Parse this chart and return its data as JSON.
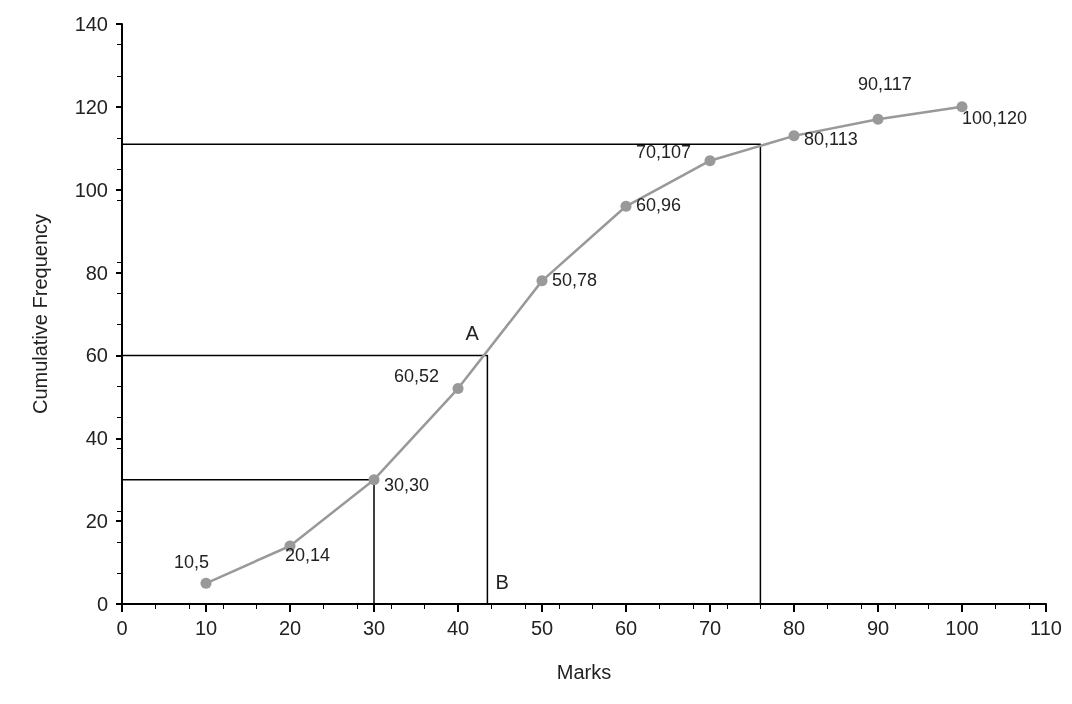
{
  "chart_data": {
    "type": "line",
    "xlabel": "Marks",
    "ylabel": "Cumulative Frequency",
    "x": [
      10,
      20,
      30,
      40,
      50,
      60,
      70,
      80,
      90,
      100
    ],
    "series": [
      {
        "color": "#999999",
        "values": [
          5,
          14,
          30,
          52,
          78,
          96,
          107,
          113,
          117,
          120
        ],
        "marker": "circle"
      },
      {
        "type": "line",
        "color": "#000000",
        "x": [
          0,
          30,
          30
        ],
        "values": [
          30,
          30,
          0
        ],
        "marker": "none"
      },
      {
        "type": "line",
        "color": "#000000",
        "x": [
          0,
          43.5,
          43.5
        ],
        "values": [
          60,
          60,
          0
        ],
        "marker": "none"
      },
      {
        "type": "line",
        "color": "#000000",
        "x": [
          0,
          76,
          76
        ],
        "values": [
          111,
          111,
          0
        ],
        "marker": "none"
      }
    ],
    "annotations": [
      {
        "text": "A",
        "x": 43.5,
        "y": 60
      },
      {
        "text": "B",
        "x": 43.5,
        "y": 0
      },
      {
        "text": "10,5",
        "x": 10,
        "y": 5
      },
      {
        "text": "20,14",
        "x": 20,
        "y": 14
      },
      {
        "text": "30,30",
        "x": 30,
        "y": 30
      },
      {
        "text": "60,52",
        "x": 40,
        "y": 52
      },
      {
        "text": "50,78",
        "x": 50,
        "y": 78
      },
      {
        "text": "60,96",
        "x": 60,
        "y": 96
      },
      {
        "text": "70,107",
        "x": 70,
        "y": 107
      },
      {
        "text": "80,113",
        "x": 80,
        "y": 113
      },
      {
        "text": "90,117",
        "x": 90,
        "y": 117
      },
      {
        "text": "100,120",
        "x": 100,
        "y": 120
      }
    ],
    "xlim": [
      0,
      110
    ],
    "xticks": [
      0,
      10,
      20,
      30,
      40,
      50,
      60,
      70,
      80,
      90,
      100,
      110
    ],
    "ylim": [
      0,
      140
    ],
    "yticks": [
      0,
      20,
      40,
      60,
      80,
      100,
      120,
      140
    ],
    "grid": false,
    "line_style": "solid"
  }
}
